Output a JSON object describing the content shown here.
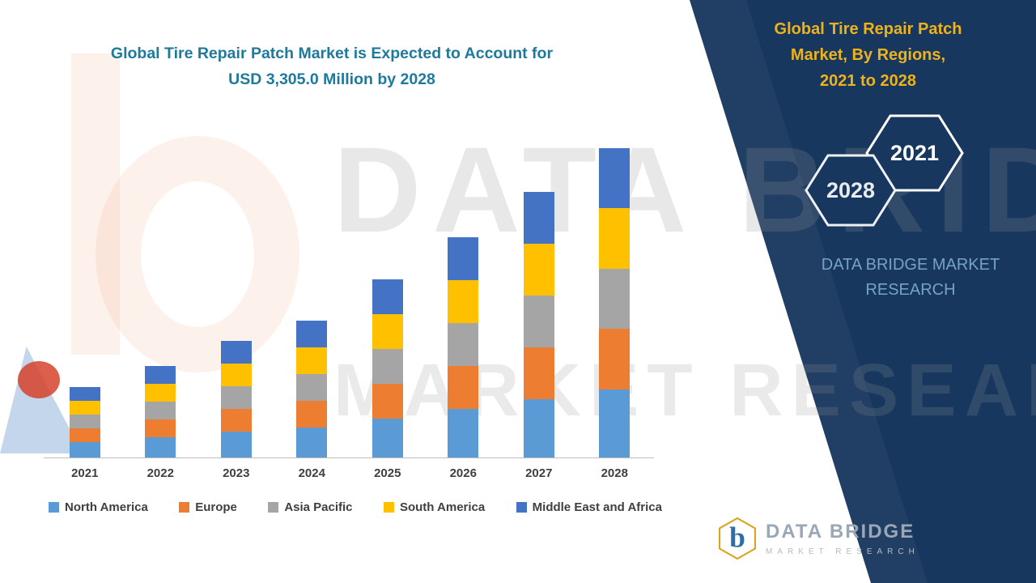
{
  "header": {
    "title_line1": "Global Tire Repair Patch Market is Expected to Account for",
    "title_line2": "USD 3,305.0 Million by 2028"
  },
  "chart_data": {
    "type": "bar",
    "stacked": true,
    "title": "Global Tire Repair Patch Market is Expected to Account for USD 3,305.0 Million by 2028",
    "unit": "USD Million",
    "categories": [
      "2021",
      "2022",
      "2023",
      "2024",
      "2025",
      "2026",
      "2027",
      "2028"
    ],
    "series": [
      {
        "name": "North America",
        "color": "#5b9bd5",
        "values": [
          165,
          216,
          273,
          321,
          418,
          519,
          625,
          727
        ]
      },
      {
        "name": "Europe",
        "color": "#ed7d31",
        "values": [
          146,
          191,
          242,
          285,
          370,
          460,
          554,
          645
        ]
      },
      {
        "name": "Asia Pacific",
        "color": "#a5a5a5",
        "values": [
          146,
          191,
          242,
          285,
          371,
          460,
          554,
          644
        ]
      },
      {
        "name": "South America",
        "color": "#ffc000",
        "values": [
          147,
          191,
          242,
          285,
          370,
          461,
          553,
          645
        ]
      },
      {
        "name": "Middle East and Africa",
        "color": "#4472c4",
        "values": [
          146,
          191,
          241,
          284,
          371,
          460,
          554,
          644
        ]
      }
    ],
    "totals": [
      750,
      980,
      1240,
      1460,
      1900,
      2360,
      2840,
      3305
    ],
    "ylim": [
      0,
      3400
    ],
    "grid": false,
    "legend_position": "bottom"
  },
  "panel": {
    "bg_color": "#17375e",
    "title_color": "#eeb21a",
    "title_line1": "Global Tire Repair Patch",
    "title_line2": "Market, By Regions,",
    "title_line3": "2021 to 2028",
    "badge_back": "2028",
    "badge_front": "2021",
    "brand_line1": "DATA BRIDGE MARKET",
    "brand_line2": "RESEARCH"
  },
  "watermark": {
    "line1": "DATA BRIDGE",
    "line2": "MARKET RESEARCH"
  },
  "footer_logo": {
    "letter": "b",
    "name": "DATA BRIDGE",
    "tagline": "MARKET RESEARCH"
  }
}
